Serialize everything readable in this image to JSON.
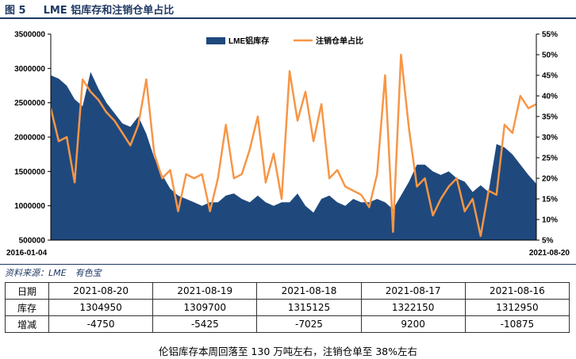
{
  "figure": {
    "number": "图 5",
    "title": "LME 铝库存和注销仓单占比"
  },
  "colors": {
    "area": "#1f497d",
    "line": "#f79646",
    "title": "#1f3864"
  },
  "chart_data": {
    "type": "area+line",
    "series": [
      {
        "name": "LME铝库存",
        "type": "area",
        "axis": "left",
        "values": [
          2900000,
          2850000,
          2750000,
          2550000,
          2450000,
          2950000,
          2700000,
          2500000,
          2350000,
          2200000,
          2150000,
          2300000,
          2050000,
          1700000,
          1450000,
          1250000,
          1150000,
          1100000,
          1050000,
          1000000,
          1050000,
          1050000,
          1150000,
          1180000,
          1100000,
          1050000,
          1150000,
          1050000,
          1000000,
          1050000,
          1050000,
          1180000,
          1000000,
          900000,
          1100000,
          1150000,
          1050000,
          1000000,
          1100000,
          1050000,
          1050000,
          1100000,
          1050000,
          950000,
          1150000,
          1350000,
          1600000,
          1600000,
          1500000,
          1450000,
          1500000,
          1400000,
          1350000,
          1200000,
          1300000,
          1200000,
          1900000,
          1850000,
          1750000,
          1600000,
          1450000,
          1320000
        ]
      },
      {
        "name": "注销仓单占比",
        "type": "line",
        "axis": "right",
        "values": [
          0.37,
          0.29,
          0.3,
          0.19,
          0.44,
          0.41,
          0.39,
          0.36,
          0.34,
          0.31,
          0.28,
          0.33,
          0.44,
          0.26,
          0.2,
          0.22,
          0.12,
          0.21,
          0.2,
          0.21,
          0.12,
          0.2,
          0.33,
          0.2,
          0.21,
          0.27,
          0.35,
          0.19,
          0.26,
          0.15,
          0.46,
          0.34,
          0.41,
          0.29,
          0.38,
          0.2,
          0.22,
          0.18,
          0.17,
          0.16,
          0.13,
          0.21,
          0.45,
          0.07,
          0.5,
          0.32,
          0.18,
          0.2,
          0.11,
          0.15,
          0.18,
          0.2,
          0.12,
          0.15,
          0.06,
          0.17,
          0.16,
          0.33,
          0.31,
          0.4,
          0.37,
          0.38
        ]
      }
    ],
    "x": {
      "start_label": "2016-01-04",
      "end_label": "2021-08-20"
    },
    "left_axis": {
      "min": 500000,
      "max": 3500000,
      "step": 500000,
      "ticks": [
        "3500000",
        "3000000",
        "2500000",
        "2000000",
        "1500000",
        "1000000",
        "500000"
      ]
    },
    "right_axis": {
      "min": 0.05,
      "max": 0.55,
      "step": 0.05,
      "ticks": [
        "55%",
        "50%",
        "45%",
        "40%",
        "35%",
        "30%",
        "25%",
        "20%",
        "15%",
        "10%",
        "5%"
      ]
    },
    "legend": {
      "position": "top-center",
      "items": [
        "LME铝库存",
        "注销仓单占比"
      ]
    },
    "grid": false
  },
  "source": "资料来源：LME　有色宝",
  "table": {
    "headers": [
      "日期",
      "2021-08-20",
      "2021-08-19",
      "2021-08-18",
      "2021-08-17",
      "2021-08-16"
    ],
    "rows": [
      {
        "label": "库存",
        "values": [
          "1304950",
          "1309700",
          "1315125",
          "1322150",
          "1312950"
        ]
      },
      {
        "label": "增减",
        "values": [
          "-4750",
          "-5425",
          "-7025",
          "9200",
          "-10875"
        ]
      }
    ]
  },
  "note": "伦铝库存本周回落至 130 万吨左右，注销仓单至 38%左右"
}
